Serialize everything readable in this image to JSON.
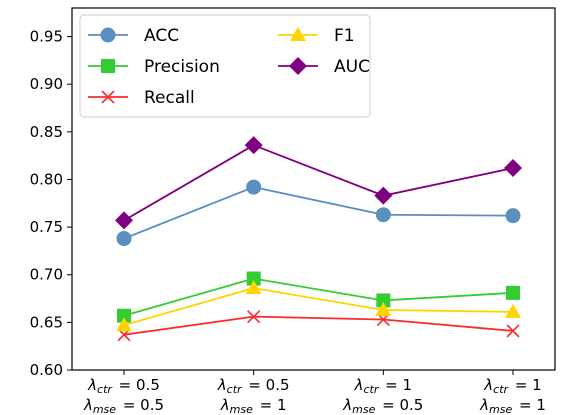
{
  "chart_data": {
    "type": "line",
    "categories": [
      {
        "top": {
          "sub": "ctr",
          "val": "= 0.5"
        },
        "bottom": {
          "sub": "mse",
          "val": "= 0.5"
        }
      },
      {
        "top": {
          "sub": "ctr",
          "val": "= 0.5"
        },
        "bottom": {
          "sub": "mse",
          "val": "= 1"
        }
      },
      {
        "top": {
          "sub": "ctr",
          "val": "= 1"
        },
        "bottom": {
          "sub": "mse",
          "val": "= 0.5"
        }
      },
      {
        "top": {
          "sub": "ctr",
          "val": "= 1"
        },
        "bottom": {
          "sub": "mse",
          "val": "= 1"
        }
      }
    ],
    "lambda_symbol": "λ",
    "series": [
      {
        "name": "ACC",
        "color": "#5b8fbf",
        "marker": "circle",
        "values": [
          0.738,
          0.792,
          0.763,
          0.762
        ]
      },
      {
        "name": "Precision",
        "color": "#33cc33",
        "marker": "square",
        "values": [
          0.657,
          0.696,
          0.673,
          0.681
        ]
      },
      {
        "name": "Recall",
        "color": "#ff2a2a",
        "marker": "x",
        "values": [
          0.637,
          0.656,
          0.653,
          0.641
        ]
      },
      {
        "name": "F1",
        "color": "#ffd400",
        "marker": "triangle",
        "values": [
          0.647,
          0.686,
          0.663,
          0.661
        ]
      },
      {
        "name": "AUC",
        "color": "#800080",
        "marker": "diamond",
        "values": [
          0.757,
          0.836,
          0.783,
          0.812
        ]
      }
    ],
    "ylim": [
      0.6,
      0.98
    ],
    "yticks": [
      0.6,
      0.65,
      0.7,
      0.75,
      0.8,
      0.85,
      0.9,
      0.95
    ],
    "ytick_labels": [
      "0.60",
      "0.65",
      "0.70",
      "0.75",
      "0.80",
      "0.85",
      "0.90",
      "0.95"
    ],
    "legend": {
      "location": "top-left",
      "columns": 2,
      "order": [
        "ACC",
        "Precision",
        "Recall",
        "F1",
        "AUC"
      ]
    },
    "grid": false
  }
}
